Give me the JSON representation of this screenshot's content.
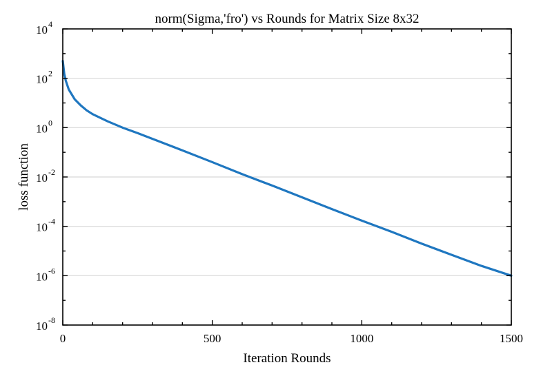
{
  "chart_data": {
    "type": "line",
    "title": "norm(Sigma,'fro') vs Rounds for Matrix Size 8x32",
    "xlabel": "Iteration Rounds",
    "ylabel": "loss function",
    "xlim": [
      0,
      1500
    ],
    "ylim": [
      1e-08,
      10000
    ],
    "yscale": "log",
    "grid": "horizontal",
    "x_ticks": [
      {
        "value": 0,
        "label": "0"
      },
      {
        "value": 500,
        "label": "500"
      },
      {
        "value": 1000,
        "label": "1000"
      },
      {
        "value": 1500,
        "label": "1500"
      }
    ],
    "y_ticks": [
      {
        "value": 1e-08,
        "base": "10",
        "exp": "-8"
      },
      {
        "value": 1e-06,
        "base": "10",
        "exp": "-6"
      },
      {
        "value": 0.0001,
        "base": "10",
        "exp": "-4"
      },
      {
        "value": 0.01,
        "base": "10",
        "exp": "-2"
      },
      {
        "value": 1,
        "base": "10",
        "exp": "0"
      },
      {
        "value": 100,
        "base": "10",
        "exp": "2"
      },
      {
        "value": 10000,
        "base": "10",
        "exp": "4"
      }
    ],
    "series": [
      {
        "color": "#1f77c0",
        "x": [
          0,
          5,
          10,
          20,
          40,
          60,
          80,
          100,
          150,
          200,
          250,
          300,
          400,
          500,
          600,
          700,
          800,
          900,
          1000,
          1100,
          1200,
          1300,
          1400,
          1500
        ],
        "y": [
          500,
          150,
          80,
          35,
          14,
          8,
          5,
          3.5,
          1.8,
          1.0,
          0.6,
          0.35,
          0.12,
          0.04,
          0.013,
          0.0045,
          0.0015,
          0.0005,
          0.00017,
          6e-05,
          2e-05,
          7e-06,
          2.5e-06,
          1e-06
        ]
      }
    ]
  }
}
